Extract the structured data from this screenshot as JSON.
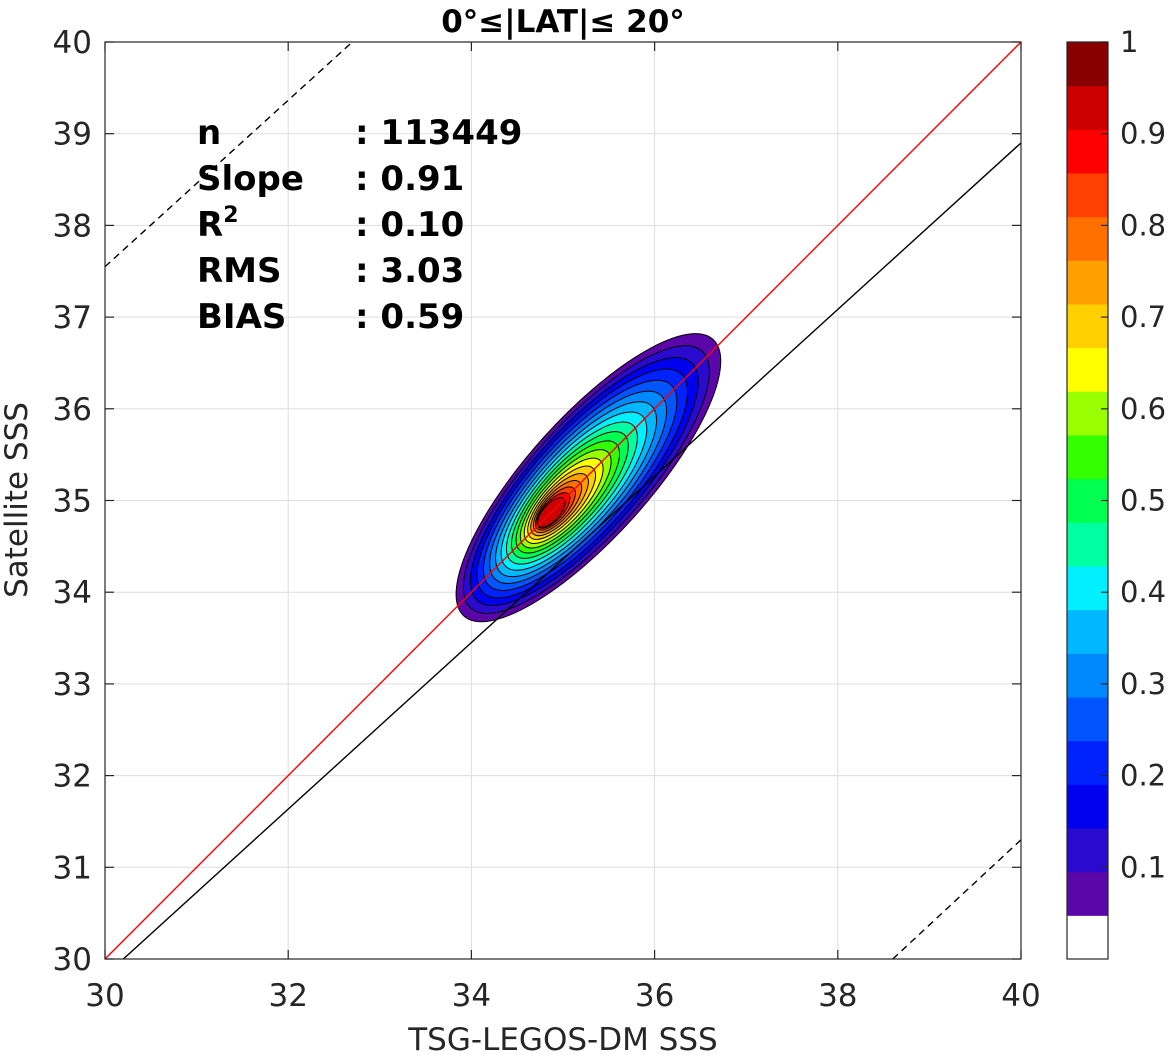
{
  "chart_data": {
    "type": "heatmap",
    "subtype": "filled-contour-density",
    "title": "0°≤|LAT|≤ 20°",
    "xlabel": "TSG-LEGOS-DM SSS",
    "ylabel": "Satellite SSS",
    "xlim": [
      30,
      40
    ],
    "ylim": [
      30,
      40
    ],
    "xticks": [
      30,
      32,
      34,
      36,
      38,
      40
    ],
    "yticks": [
      30,
      31,
      32,
      33,
      34,
      35,
      36,
      37,
      38,
      39,
      40
    ],
    "grid": true,
    "stats": [
      {
        "label": "n",
        "value": ": 113449"
      },
      {
        "label": "Slope",
        "value": ": 0.91"
      },
      {
        "label": "R",
        "sup": "2",
        "value": ": 0.10"
      },
      {
        "label": "RMS",
        "value": ": 3.03"
      },
      {
        "label": "BIAS",
        "value": ": 0.59"
      }
    ],
    "reference_lines": [
      {
        "name": "1:1",
        "style": "solid",
        "color": "#ff0000",
        "x": [
          30,
          40
        ],
        "y": [
          30,
          40
        ]
      },
      {
        "name": "fit",
        "style": "solid",
        "color": "#000000",
        "x": [
          30.2,
          40
        ],
        "y": [
          30,
          38.9
        ]
      },
      {
        "name": "upper",
        "style": "dashed",
        "color": "#000000",
        "x": [
          30,
          32.7
        ],
        "y": [
          37.55,
          40
        ]
      },
      {
        "name": "lower",
        "style": "dashed",
        "color": "#000000",
        "x": [
          38.6,
          40
        ],
        "y": [
          30,
          31.3
        ]
      }
    ],
    "density_peak": {
      "x": 34.85,
      "y": 34.85
    },
    "density_max_level": 0.95,
    "colorbar": {
      "levels": [
        0,
        0.05,
        0.1,
        0.15,
        0.2,
        0.25,
        0.3,
        0.35,
        0.4,
        0.45,
        0.5,
        0.55,
        0.6,
        0.65,
        0.7,
        0.75,
        0.8,
        0.85,
        0.9,
        0.95,
        1.0
      ],
      "colors": [
        "#ffffff",
        "#5a06a8",
        "#2b0ad0",
        "#0000ee",
        "#0022ff",
        "#0055ff",
        "#0088ff",
        "#00b8ff",
        "#00f0ff",
        "#00ffa0",
        "#00ff50",
        "#33ff00",
        "#99ff00",
        "#ffff00",
        "#ffd000",
        "#ffa000",
        "#ff7000",
        "#ff4000",
        "#ff0000",
        "#cc0000",
        "#880000"
      ],
      "tick_values": [
        0.1,
        0.2,
        0.3,
        0.4,
        0.5,
        0.6,
        0.7,
        0.8,
        0.9,
        1
      ],
      "tick_labels": [
        "0.1",
        "0.2",
        "0.3",
        "0.4",
        "0.5",
        "0.6",
        "0.7",
        "0.8",
        "0.9",
        "1"
      ]
    }
  }
}
